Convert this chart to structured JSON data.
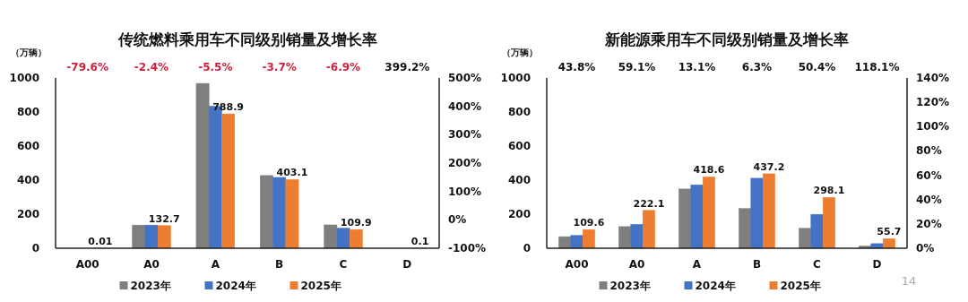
{
  "chart_data": [
    {
      "type": "bar",
      "title": "传统燃料乘用车不同级别销量及增长率",
      "ylabel": "（万辆）",
      "categories": [
        "A00",
        "A0",
        "A",
        "B",
        "C",
        "D"
      ],
      "series": [
        {
          "name": "2023年",
          "color": "#7f7f7f",
          "values": [
            0,
            136,
            968,
            427,
            137,
            0
          ]
        },
        {
          "name": "2024年",
          "color": "#4472c4",
          "values": [
            0,
            136,
            834,
            416,
            118,
            0
          ]
        },
        {
          "name": "2025年",
          "color": "#ed7d31",
          "values": [
            0.01,
            132.7,
            788.9,
            403.1,
            109.9,
            0.1
          ],
          "value_labels": [
            "0.01",
            "132.7",
            "788.9",
            "403.1",
            "109.9",
            "0.1"
          ]
        }
      ],
      "ylim": [
        0,
        1000
      ],
      "yticks": [
        0,
        200,
        400,
        600,
        800,
        1000
      ],
      "y2lim": [
        -100,
        500
      ],
      "y2ticks": [
        {
          "value": -100,
          "label": "-100%"
        },
        {
          "value": 0,
          "label": "0%"
        },
        {
          "value": 100,
          "label": "100%"
        },
        {
          "value": 200,
          "label": "200%"
        },
        {
          "value": 300,
          "label": "300%"
        },
        {
          "value": 400,
          "label": "400%"
        },
        {
          "value": 500,
          "label": "500%"
        }
      ],
      "annotations": [
        "-79.6%",
        "-2.4%",
        "-5.5%",
        "-3.7%",
        "-6.9%",
        "399.2%"
      ],
      "legend": "bottom",
      "grid": false
    },
    {
      "type": "bar",
      "title": "新能源乘用车不同级别销量及增长率",
      "ylabel": "（万辆）",
      "categories": [
        "A00",
        "A0",
        "A",
        "B",
        "C",
        "D"
      ],
      "series": [
        {
          "name": "2023年",
          "color": "#7f7f7f",
          "values": [
            68,
            127,
            348,
            233,
            117,
            13
          ]
        },
        {
          "name": "2024年",
          "color": "#4472c4",
          "values": [
            75,
            140,
            372,
            411,
            199,
            27
          ]
        },
        {
          "name": "2025年",
          "color": "#ed7d31",
          "values": [
            109.6,
            222.1,
            418.6,
            437.2,
            298.1,
            55.7
          ],
          "value_labels": [
            "109.6",
            "222.1",
            "418.6",
            "437.2",
            "298.1",
            "55.7"
          ]
        }
      ],
      "ylim": [
        0,
        1000
      ],
      "yticks": [
        0,
        200,
        400,
        600,
        800,
        1000
      ],
      "y2lim": [
        0,
        140
      ],
      "y2ticks": [
        {
          "value": 0,
          "label": "0%"
        },
        {
          "value": 20,
          "label": "20%"
        },
        {
          "value": 40,
          "label": "40%"
        },
        {
          "value": 60,
          "label": "60%"
        },
        {
          "value": 80,
          "label": "80%"
        },
        {
          "value": 100,
          "label": "100%"
        },
        {
          "value": 120,
          "label": "120%"
        },
        {
          "value": 140,
          "label": "140%"
        }
      ],
      "annotations": [
        "43.8%",
        "59.1%",
        "13.1%",
        "6.3%",
        "50.4%",
        "118.1%",
        "14"
      ],
      "legend": "bottom",
      "grid": false
    }
  ]
}
